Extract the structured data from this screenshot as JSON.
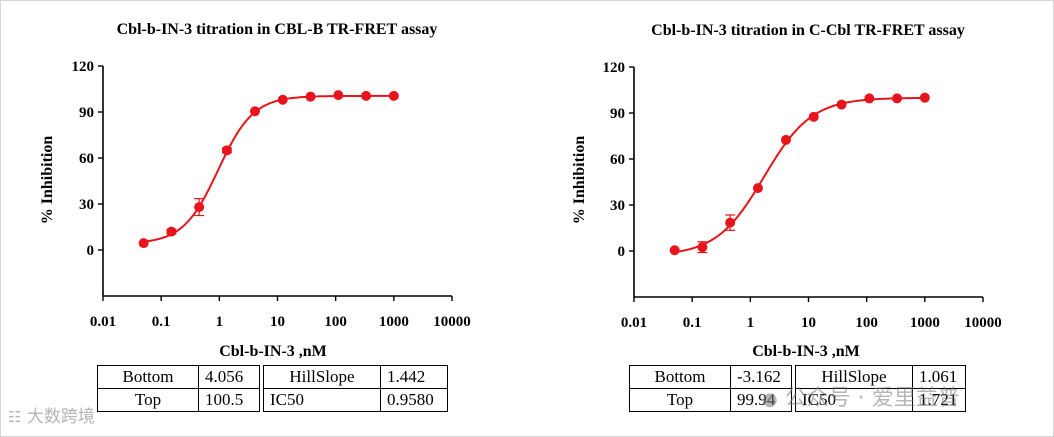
{
  "chart_data": [
    {
      "type": "scatter",
      "title": "Cbl-b-IN-3 titration in CBL-B TR-FRET assay",
      "xlabel": "Cbl-b-IN-3 ,nM",
      "ylabel": "% Inhibition",
      "xscale": "log",
      "xlim": [
        0.01,
        10000
      ],
      "ylim": [
        -30,
        120
      ],
      "xticks": [
        "0.01",
        "0.1",
        "1",
        "10",
        "100",
        "1000",
        "10000"
      ],
      "yticks": [
        "0",
        "30",
        "60",
        "90",
        "120"
      ],
      "x": [
        0.05,
        0.15,
        0.45,
        1.35,
        4.1,
        12.3,
        37,
        111,
        333,
        1000
      ],
      "y": [
        4.5,
        12,
        28,
        65,
        90.5,
        98,
        100,
        101,
        100.5,
        100.5
      ],
      "yerr": [
        1,
        1.5,
        5.5,
        1.5,
        1,
        1,
        0.5,
        0.5,
        0.5,
        0.5
      ],
      "fit": {
        "bottom": 4.056,
        "top": 100.5,
        "hillslope": 1.442,
        "ic50": 0.958
      },
      "params": {
        "bottom_label": "Bottom",
        "bottom_value": "4.056",
        "top_label": "Top",
        "top_value": "100.5",
        "hill_label": "HillSlope",
        "hill_value": "1.442",
        "ic50_label": "IC50",
        "ic50_value": "0.9580"
      },
      "color": "#e8141c"
    },
    {
      "type": "scatter",
      "title": "Cbl-b-IN-3 titration in C-Cbl TR-FRET assay",
      "xlabel": "Cbl-b-IN-3 ,nM",
      "ylabel": "% Inhibition",
      "xscale": "log",
      "xlim": [
        0.01,
        10000
      ],
      "ylim": [
        -30,
        120
      ],
      "xticks": [
        "0.01",
        "0.1",
        "1",
        "10",
        "100",
        "1000",
        "10000"
      ],
      "yticks": [
        "0",
        "30",
        "60",
        "90",
        "120"
      ],
      "x": [
        0.05,
        0.15,
        0.45,
        1.35,
        4.1,
        12.3,
        37,
        111,
        333,
        1000
      ],
      "y": [
        0.5,
        2.5,
        18.5,
        41,
        72.5,
        87.5,
        95.5,
        99.5,
        99.5,
        100
      ],
      "yerr": [
        0.5,
        3.5,
        5,
        1,
        1,
        1,
        1,
        0.5,
        0.5,
        0.5
      ],
      "fit": {
        "bottom": -3.162,
        "top": 99.94,
        "hillslope": 1.061,
        "ic50": 1.721
      },
      "params": {
        "bottom_label": "Bottom",
        "bottom_value": "-3.162",
        "top_label": "Top",
        "top_value": "99.94",
        "hill_label": "HillSlope",
        "hill_value": "1.061",
        "ic50_label": "IC50",
        "ic50_value": "1.721"
      },
      "color": "#e8141c"
    }
  ],
  "watermarks": {
    "left": "大数跨境",
    "right": "公众号 · 爱里益普"
  }
}
